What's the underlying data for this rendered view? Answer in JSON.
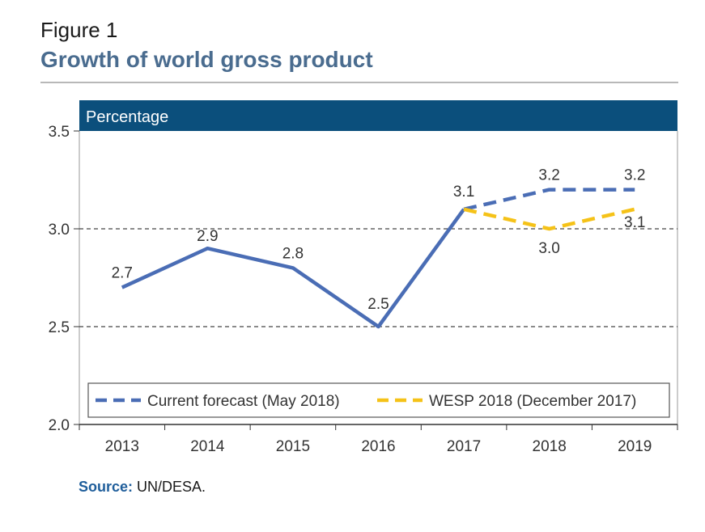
{
  "figure": {
    "label": "Figure 1",
    "title": "Growth of world gross product"
  },
  "source": {
    "label": "Source:",
    "text": " UN/DESA."
  },
  "colors": {
    "header_band": "#0b4f7c",
    "current": "#4a6db5",
    "wesp": "#f5c218",
    "title": "#4a6c8f",
    "source_label": "#1f5e9b"
  },
  "chart_data": {
    "type": "line",
    "unit_label": "Percentage",
    "categories": [
      "2013",
      "2014",
      "2015",
      "2016",
      "2017",
      "2018",
      "2019"
    ],
    "ylim": [
      2.0,
      3.5
    ],
    "yticks": [
      "2.0",
      "2.5",
      "3.0",
      "3.5"
    ],
    "gridlines": [
      2.5,
      3.0
    ],
    "series": [
      {
        "id": "historical",
        "style": "solid",
        "color": "#4a6db5",
        "points": [
          {
            "x": "2013",
            "y": 2.7,
            "label": "2.7"
          },
          {
            "x": "2014",
            "y": 2.9,
            "label": "2.9"
          },
          {
            "x": "2015",
            "y": 2.8,
            "label": "2.8"
          },
          {
            "x": "2016",
            "y": 2.5,
            "label": "2.5"
          },
          {
            "x": "2017",
            "y": 3.1,
            "label": "3.1"
          }
        ]
      },
      {
        "id": "current",
        "name": "Current forecast (May 2018)",
        "style": "dashed",
        "color": "#4a6db5",
        "points": [
          {
            "x": "2017",
            "y": 3.1,
            "label": ""
          },
          {
            "x": "2018",
            "y": 3.2,
            "label": "3.2"
          },
          {
            "x": "2019",
            "y": 3.2,
            "label": "3.2"
          }
        ]
      },
      {
        "id": "wesp",
        "name": "WESP 2018 (December 2017)",
        "style": "dashed",
        "color": "#f5c218",
        "points": [
          {
            "x": "2017",
            "y": 3.1,
            "label": ""
          },
          {
            "x": "2018",
            "y": 3.0,
            "label": "3.0"
          },
          {
            "x": "2019",
            "y": 3.1,
            "label": "3.1"
          }
        ]
      }
    ],
    "legend": {
      "placement": "bottom",
      "items": [
        "Current forecast (May 2018)",
        "WESP 2018 (December 2017)"
      ]
    }
  }
}
